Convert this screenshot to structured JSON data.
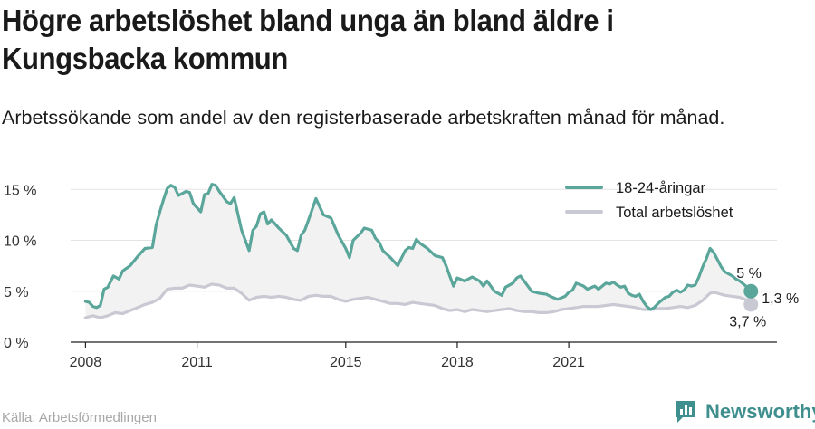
{
  "title": "Högre arbetslöshet bland unga än bland äldre i Kungsbacka kommun",
  "subtitle": "Arbetssökande som andel av den registerbaserade arbetskraften månad för månad.",
  "source": "Källa: Arbetsförmedlingen",
  "brand": "Newsworthy",
  "colors": {
    "youth": "#5aa69b",
    "total": "#c9c9d3",
    "fill": "#f2f2f2",
    "grid": "#e3e3e3"
  },
  "chart_data": {
    "type": "line",
    "ylim": [
      0,
      16
    ],
    "y_ticks": [
      0,
      5,
      10,
      15
    ],
    "y_tick_labels": [
      "0 %",
      "5 %",
      "10 %",
      "15 %"
    ],
    "x_ticks": [
      2008,
      2011,
      2015,
      2018,
      2021
    ],
    "x_tick_labels": [
      "2008",
      "2011",
      "2015",
      "2018",
      "2021"
    ],
    "grid": true,
    "legend_position": "top-right",
    "series": [
      {
        "name": "18-24-åringar",
        "color": "#5aa69b",
        "end_label": "5 %",
        "points": [
          [
            2008.0,
            4.0
          ],
          [
            2008.1,
            3.9
          ],
          [
            2008.2,
            3.5
          ],
          [
            2008.3,
            3.4
          ],
          [
            2008.4,
            3.6
          ],
          [
            2008.5,
            5.2
          ],
          [
            2008.6,
            5.4
          ],
          [
            2008.75,
            6.5
          ],
          [
            2008.9,
            6.2
          ],
          [
            2009.0,
            7.0
          ],
          [
            2009.2,
            7.5
          ],
          [
            2009.4,
            8.4
          ],
          [
            2009.6,
            9.2
          ],
          [
            2009.8,
            9.3
          ],
          [
            2009.9,
            11.5
          ],
          [
            2010.0,
            12.8
          ],
          [
            2010.1,
            14.0
          ],
          [
            2010.2,
            15.1
          ],
          [
            2010.3,
            15.4
          ],
          [
            2010.4,
            15.2
          ],
          [
            2010.5,
            14.4
          ],
          [
            2010.6,
            14.6
          ],
          [
            2010.7,
            14.8
          ],
          [
            2010.8,
            14.7
          ],
          [
            2010.9,
            13.6
          ],
          [
            2011.0,
            13.2
          ],
          [
            2011.1,
            12.8
          ],
          [
            2011.2,
            14.5
          ],
          [
            2011.3,
            14.6
          ],
          [
            2011.4,
            15.5
          ],
          [
            2011.5,
            15.4
          ],
          [
            2011.6,
            14.8
          ],
          [
            2011.7,
            14.3
          ],
          [
            2011.8,
            13.8
          ],
          [
            2011.9,
            13.6
          ],
          [
            2012.0,
            14.2
          ],
          [
            2012.1,
            12.6
          ],
          [
            2012.2,
            11.0
          ],
          [
            2012.3,
            10.0
          ],
          [
            2012.4,
            9.0
          ],
          [
            2012.5,
            11.0
          ],
          [
            2012.6,
            11.4
          ],
          [
            2012.7,
            12.6
          ],
          [
            2012.8,
            12.8
          ],
          [
            2012.9,
            11.6
          ],
          [
            2013.0,
            12.0
          ],
          [
            2013.2,
            11.2
          ],
          [
            2013.4,
            10.5
          ],
          [
            2013.6,
            9.2
          ],
          [
            2013.7,
            9.0
          ],
          [
            2013.8,
            10.5
          ],
          [
            2013.9,
            11.0
          ],
          [
            2014.0,
            12.0
          ],
          [
            2014.2,
            14.1
          ],
          [
            2014.4,
            12.5
          ],
          [
            2014.6,
            12.2
          ],
          [
            2014.8,
            10.5
          ],
          [
            2015.0,
            9.2
          ],
          [
            2015.1,
            8.3
          ],
          [
            2015.2,
            10.0
          ],
          [
            2015.4,
            10.7
          ],
          [
            2015.5,
            11.2
          ],
          [
            2015.7,
            11.0
          ],
          [
            2015.8,
            10.2
          ],
          [
            2015.9,
            9.8
          ],
          [
            2016.0,
            9.0
          ],
          [
            2016.2,
            8.3
          ],
          [
            2016.4,
            7.5
          ],
          [
            2016.6,
            9.0
          ],
          [
            2016.7,
            9.3
          ],
          [
            2016.8,
            9.2
          ],
          [
            2016.9,
            10.1
          ],
          [
            2017.0,
            9.7
          ],
          [
            2017.2,
            9.2
          ],
          [
            2017.4,
            8.5
          ],
          [
            2017.6,
            8.3
          ],
          [
            2017.7,
            7.5
          ],
          [
            2017.8,
            6.5
          ],
          [
            2017.9,
            5.5
          ],
          [
            2018.0,
            6.3
          ],
          [
            2018.2,
            6.0
          ],
          [
            2018.4,
            6.4
          ],
          [
            2018.6,
            6.0
          ],
          [
            2018.7,
            5.5
          ],
          [
            2018.8,
            6.0
          ],
          [
            2018.9,
            5.5
          ],
          [
            2019.0,
            5.0
          ],
          [
            2019.2,
            4.6
          ],
          [
            2019.3,
            5.4
          ],
          [
            2019.5,
            5.8
          ],
          [
            2019.6,
            6.3
          ],
          [
            2019.7,
            6.5
          ],
          [
            2019.8,
            6.0
          ],
          [
            2019.9,
            5.5
          ],
          [
            2020.0,
            5.0
          ],
          [
            2020.2,
            4.8
          ],
          [
            2020.4,
            4.7
          ],
          [
            2020.5,
            4.5
          ],
          [
            2020.7,
            4.2
          ],
          [
            2020.9,
            4.5
          ],
          [
            2021.0,
            4.9
          ],
          [
            2021.1,
            5.1
          ],
          [
            2021.2,
            5.8
          ],
          [
            2021.4,
            5.5
          ],
          [
            2021.5,
            5.2
          ],
          [
            2021.7,
            5.5
          ],
          [
            2021.8,
            5.2
          ],
          [
            2021.9,
            5.5
          ],
          [
            2022.0,
            5.8
          ],
          [
            2022.1,
            5.7
          ],
          [
            2022.2,
            5.9
          ],
          [
            2022.3,
            5.6
          ],
          [
            2022.4,
            5.4
          ],
          [
            2022.5,
            5.5
          ],
          [
            2022.6,
            4.8
          ],
          [
            2022.7,
            4.6
          ],
          [
            2022.8,
            4.5
          ],
          [
            2022.9,
            4.7
          ],
          [
            2023.0,
            4.0
          ],
          [
            2023.1,
            3.5
          ],
          [
            2023.2,
            3.2
          ],
          [
            2023.3,
            3.4
          ],
          [
            2023.4,
            3.8
          ],
          [
            2023.5,
            4.1
          ],
          [
            2023.6,
            4.4
          ],
          [
            2023.7,
            4.5
          ],
          [
            2023.8,
            4.9
          ],
          [
            2023.9,
            5.1
          ],
          [
            2024.0,
            4.9
          ],
          [
            2024.1,
            5.1
          ],
          [
            2024.2,
            5.6
          ],
          [
            2024.3,
            5.5
          ],
          [
            2024.4,
            5.6
          ],
          [
            2024.5,
            6.4
          ],
          [
            2024.6,
            7.4
          ],
          [
            2024.7,
            8.2
          ],
          [
            2024.8,
            9.2
          ],
          [
            2024.9,
            8.8
          ],
          [
            2025.0,
            8.1
          ],
          [
            2025.1,
            7.4
          ],
          [
            2025.2,
            6.9
          ],
          [
            2025.3,
            6.7
          ],
          [
            2025.4,
            6.5
          ],
          [
            2025.5,
            6.2
          ],
          [
            2025.6,
            6.0
          ],
          [
            2025.7,
            5.7
          ],
          [
            2025.8,
            5.4
          ],
          [
            2025.9,
            5.0
          ]
        ]
      },
      {
        "name": "Total arbetslöshet",
        "color": "#c9c9d3",
        "end_label": "3,7 %",
        "points": [
          [
            2008.0,
            2.4
          ],
          [
            2008.2,
            2.6
          ],
          [
            2008.4,
            2.4
          ],
          [
            2008.6,
            2.6
          ],
          [
            2008.8,
            2.9
          ],
          [
            2009.0,
            2.8
          ],
          [
            2009.2,
            3.1
          ],
          [
            2009.4,
            3.4
          ],
          [
            2009.6,
            3.7
          ],
          [
            2009.8,
            3.9
          ],
          [
            2010.0,
            4.3
          ],
          [
            2010.2,
            5.2
          ],
          [
            2010.4,
            5.3
          ],
          [
            2010.6,
            5.3
          ],
          [
            2010.8,
            5.6
          ],
          [
            2011.0,
            5.5
          ],
          [
            2011.2,
            5.4
          ],
          [
            2011.4,
            5.7
          ],
          [
            2011.6,
            5.6
          ],
          [
            2011.8,
            5.3
          ],
          [
            2012.0,
            5.3
          ],
          [
            2012.2,
            4.8
          ],
          [
            2012.4,
            4.1
          ],
          [
            2012.6,
            4.4
          ],
          [
            2012.8,
            4.5
          ],
          [
            2013.0,
            4.4
          ],
          [
            2013.2,
            4.5
          ],
          [
            2013.4,
            4.4
          ],
          [
            2013.6,
            4.2
          ],
          [
            2013.8,
            4.1
          ],
          [
            2014.0,
            4.5
          ],
          [
            2014.2,
            4.6
          ],
          [
            2014.4,
            4.5
          ],
          [
            2014.6,
            4.5
          ],
          [
            2014.8,
            4.2
          ],
          [
            2015.0,
            4.0
          ],
          [
            2015.2,
            4.2
          ],
          [
            2015.4,
            4.3
          ],
          [
            2015.6,
            4.4
          ],
          [
            2015.8,
            4.2
          ],
          [
            2016.0,
            4.0
          ],
          [
            2016.2,
            3.8
          ],
          [
            2016.4,
            3.8
          ],
          [
            2016.6,
            3.7
          ],
          [
            2016.8,
            3.9
          ],
          [
            2017.0,
            3.8
          ],
          [
            2017.2,
            3.7
          ],
          [
            2017.4,
            3.6
          ],
          [
            2017.6,
            3.3
          ],
          [
            2017.8,
            3.1
          ],
          [
            2018.0,
            3.2
          ],
          [
            2018.2,
            3.0
          ],
          [
            2018.4,
            3.2
          ],
          [
            2018.6,
            3.1
          ],
          [
            2018.8,
            3.0
          ],
          [
            2019.0,
            3.1
          ],
          [
            2019.2,
            3.2
          ],
          [
            2019.4,
            3.3
          ],
          [
            2019.6,
            3.1
          ],
          [
            2019.8,
            3.0
          ],
          [
            2020.0,
            3.0
          ],
          [
            2020.2,
            2.9
          ],
          [
            2020.4,
            2.9
          ],
          [
            2020.6,
            3.0
          ],
          [
            2020.8,
            3.2
          ],
          [
            2021.0,
            3.3
          ],
          [
            2021.2,
            3.4
          ],
          [
            2021.4,
            3.5
          ],
          [
            2021.6,
            3.5
          ],
          [
            2021.8,
            3.5
          ],
          [
            2022.0,
            3.6
          ],
          [
            2022.2,
            3.7
          ],
          [
            2022.4,
            3.6
          ],
          [
            2022.6,
            3.5
          ],
          [
            2022.8,
            3.4
          ],
          [
            2023.0,
            3.2
          ],
          [
            2023.2,
            3.2
          ],
          [
            2023.4,
            3.3
          ],
          [
            2023.6,
            3.3
          ],
          [
            2023.8,
            3.4
          ],
          [
            2024.0,
            3.5
          ],
          [
            2024.2,
            3.4
          ],
          [
            2024.4,
            3.6
          ],
          [
            2024.6,
            4.1
          ],
          [
            2024.8,
            4.8
          ],
          [
            2024.9,
            4.9
          ],
          [
            2025.0,
            4.8
          ],
          [
            2025.2,
            4.6
          ],
          [
            2025.4,
            4.5
          ],
          [
            2025.6,
            4.4
          ],
          [
            2025.8,
            4.1
          ],
          [
            2025.9,
            3.7
          ]
        ]
      }
    ],
    "difference_label": "1,3 %"
  }
}
